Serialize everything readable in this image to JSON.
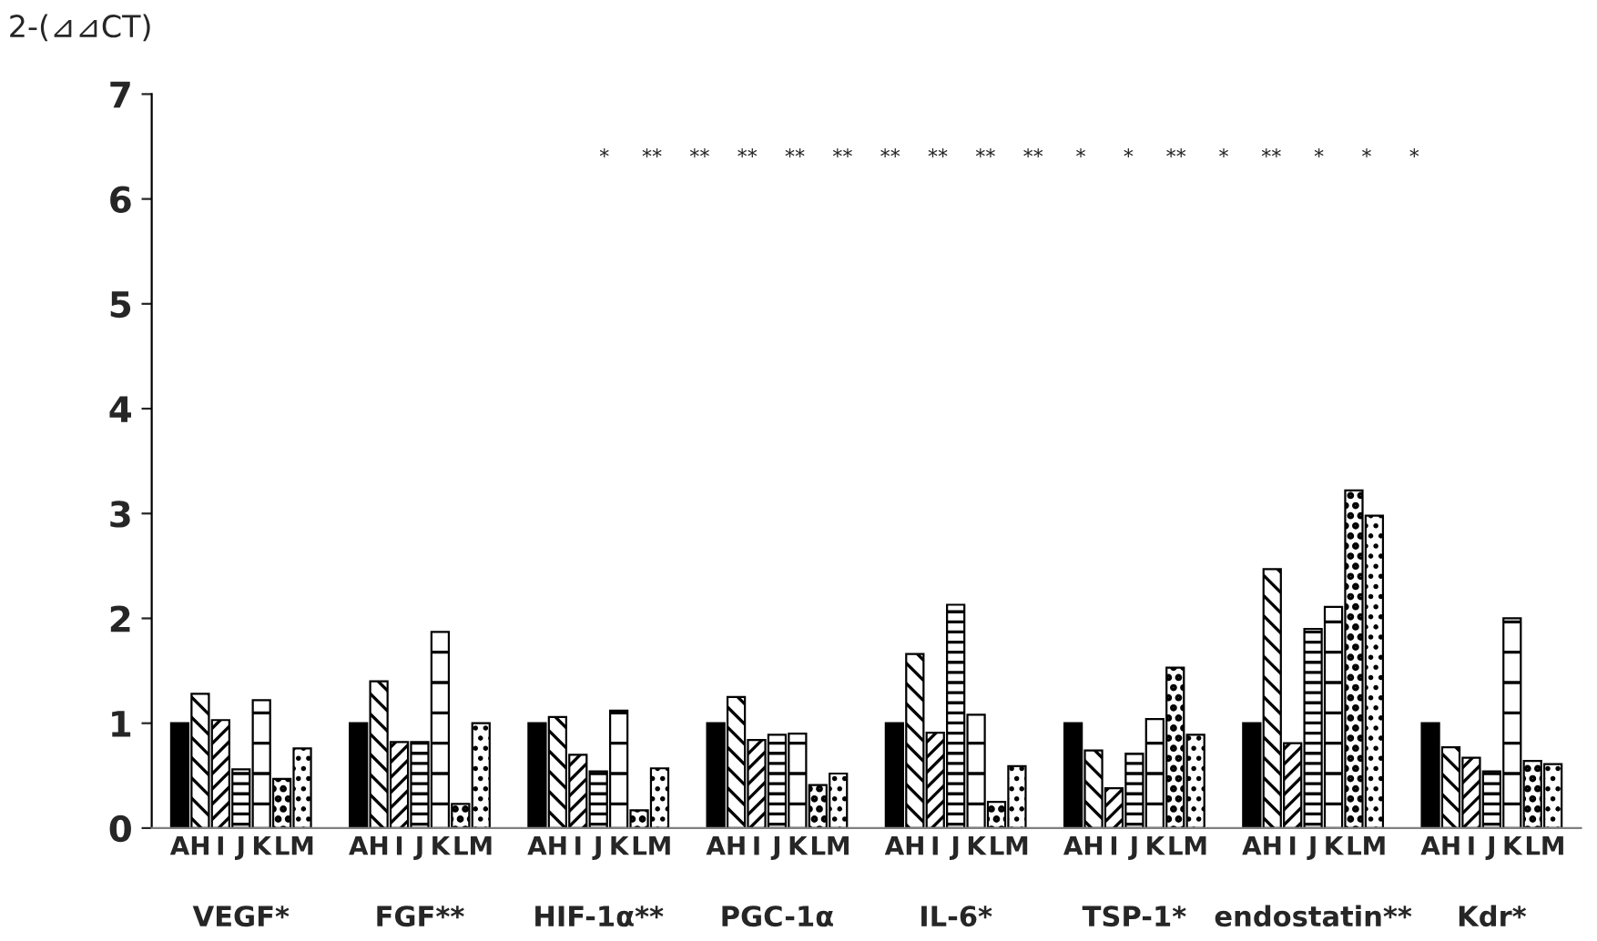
{
  "chart_data": {
    "type": "bar",
    "ylabel": "2-(⊿⊿CT)",
    "categories": [
      "VEGF*",
      "FGF**",
      "HIF-1α**",
      "PGC-1α",
      "IL-6*",
      "TSP-1*",
      "endostatin**",
      "Kdr*"
    ],
    "series": [
      {
        "name": "A",
        "color": "#000000",
        "values": [
          1,
          1,
          1,
          1,
          1,
          1,
          1,
          1
        ]
      },
      {
        "name": "H",
        "color": "#000000",
        "values": [
          1.28,
          1.4,
          1.06,
          1.25,
          1.66,
          0.74,
          2.47,
          0.77
        ]
      },
      {
        "name": "I",
        "color": "#000000",
        "values": [
          1.03,
          0.82,
          0.7,
          0.84,
          0.91,
          0.38,
          0.81,
          0.67
        ]
      },
      {
        "name": "J",
        "color": "#000000",
        "values": [
          0.56,
          0.82,
          0.54,
          0.89,
          2.13,
          0.71,
          1.9,
          0.54
        ]
      },
      {
        "name": "K",
        "color": "#000000",
        "values": [
          1.22,
          1.87,
          1.12,
          0.9,
          1.08,
          1.04,
          2.11,
          2.0
        ]
      },
      {
        "name": "L",
        "color": "#000000",
        "values": [
          0.47,
          0.23,
          0.17,
          0.41,
          0.25,
          1.53,
          3.22,
          0.64
        ]
      },
      {
        "name": "M",
        "color": "#000000",
        "values": [
          0.76,
          1.0,
          0.57,
          0.52,
          0.59,
          0.89,
          2.98,
          0.61
        ]
      }
    ],
    "ylim": [
      0,
      7
    ],
    "yticks": [
      0,
      1,
      2,
      3,
      4,
      5,
      6,
      7
    ],
    "grid": false,
    "legend": false,
    "annotations": [
      "*",
      "**",
      "**",
      "**",
      "**",
      "**",
      "**",
      "**",
      "**",
      "**",
      "*",
      "*",
      "**",
      "*",
      "**",
      "*",
      "*",
      "*"
    ]
  }
}
